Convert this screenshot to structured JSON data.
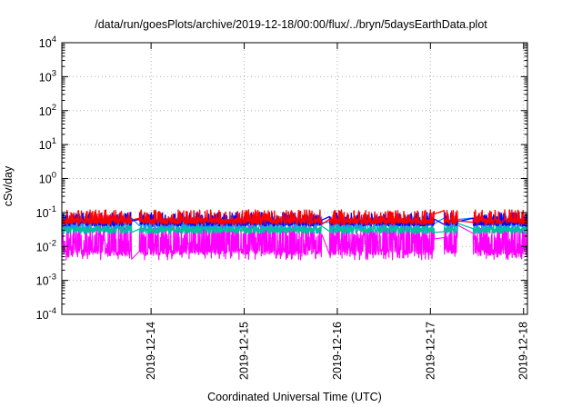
{
  "chart_data": {
    "type": "line",
    "title": "/data/run/goesPlots/archive/2019-12-18/00:00/flux/../bryn/5daysEarthData.plot",
    "xlabel": "Coordinated Universal Time (UTC)",
    "ylabel": "cSv/day",
    "yscale": "log",
    "ylim": [
      0.0001,
      10000
    ],
    "y_ticks": [
      {
        "base": "10",
        "exp": "-4",
        "value": 0.0001
      },
      {
        "base": "10",
        "exp": "-3",
        "value": 0.001
      },
      {
        "base": "10",
        "exp": "-2",
        "value": 0.01
      },
      {
        "base": "10",
        "exp": "-1",
        "value": 0.1
      },
      {
        "base": "10",
        "exp": "0",
        "value": 1
      },
      {
        "base": "10",
        "exp": "1",
        "value": 10
      },
      {
        "base": "10",
        "exp": "2",
        "value": 100
      },
      {
        "base": "10",
        "exp": "3",
        "value": 1000
      },
      {
        "base": "10",
        "exp": "4",
        "value": 10000
      }
    ],
    "xlim": [
      "2019-12-13T01:00",
      "2019-12-18T01:00"
    ],
    "x_ticks": [
      "2019-12-14",
      "2019-12-15",
      "2019-12-16",
      "2019-12-17",
      "2019-12-18"
    ],
    "grid": true,
    "legend": "none",
    "data_gaps": [
      [
        "2019-12-13T19:00",
        "2019-12-13T21:00"
      ],
      [
        "2019-12-15T20:00",
        "2019-12-15T22:00"
      ],
      [
        "2019-12-17T01:00",
        "2019-12-17T03:30"
      ],
      [
        "2019-12-17T07:00",
        "2019-12-17T11:00"
      ]
    ],
    "series": [
      {
        "color": "#ff0000",
        "baseline": 0.055,
        "spike_max": 0.12
      },
      {
        "color": "#0000ff",
        "baseline": 0.05,
        "spike_max": 0.1
      },
      {
        "color": "#00c0a0",
        "baseline": 0.03,
        "spike_max": 0.06
      },
      {
        "color": "#1e90ff",
        "baseline": 0.045,
        "spike_max": 0.08
      },
      {
        "color": "#ff00ff",
        "baseline": 0.007,
        "spike_max": 0.05,
        "min": 0.004
      }
    ]
  }
}
